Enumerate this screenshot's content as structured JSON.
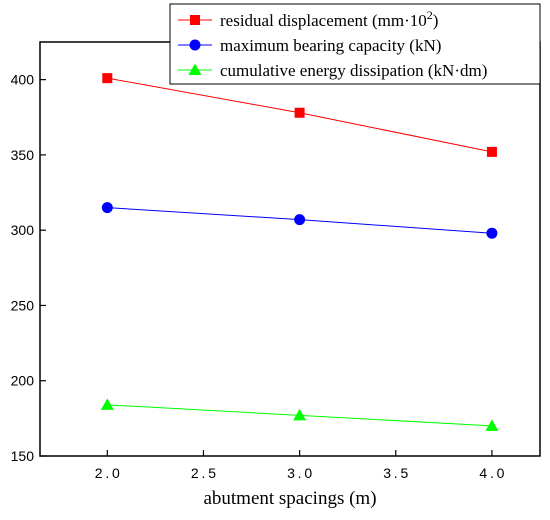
{
  "chart_data": {
    "type": "line",
    "title": "",
    "xlabel": "abutment spacings (m)",
    "ylabel": "",
    "xlim": [
      1.65,
      4.25
    ],
    "ylim": [
      150,
      425
    ],
    "x": [
      2.0,
      3.0,
      4.0
    ],
    "x_ticks": [
      "2.0",
      "2.5",
      "3.0",
      "3.5",
      "4.0"
    ],
    "y_ticks": [
      "150",
      "200",
      "250",
      "300",
      "350",
      "400"
    ],
    "grid": false,
    "legend_position": "top-right",
    "series": [
      {
        "name": "residual displacement (mm·10",
        "name_superscript": "2",
        "name_suffix": ")",
        "color": "#ff0000",
        "marker": "square",
        "values": [
          401,
          378,
          352
        ]
      },
      {
        "name": "maximum bearing capacity (kN)",
        "color": "#0000ff",
        "marker": "circle",
        "values": [
          315,
          307,
          298
        ]
      },
      {
        "name": "cumulative energy dissipation (kN·dm)",
        "color": "#00ff00",
        "marker": "triangle",
        "values": [
          184,
          177,
          170
        ]
      }
    ]
  }
}
